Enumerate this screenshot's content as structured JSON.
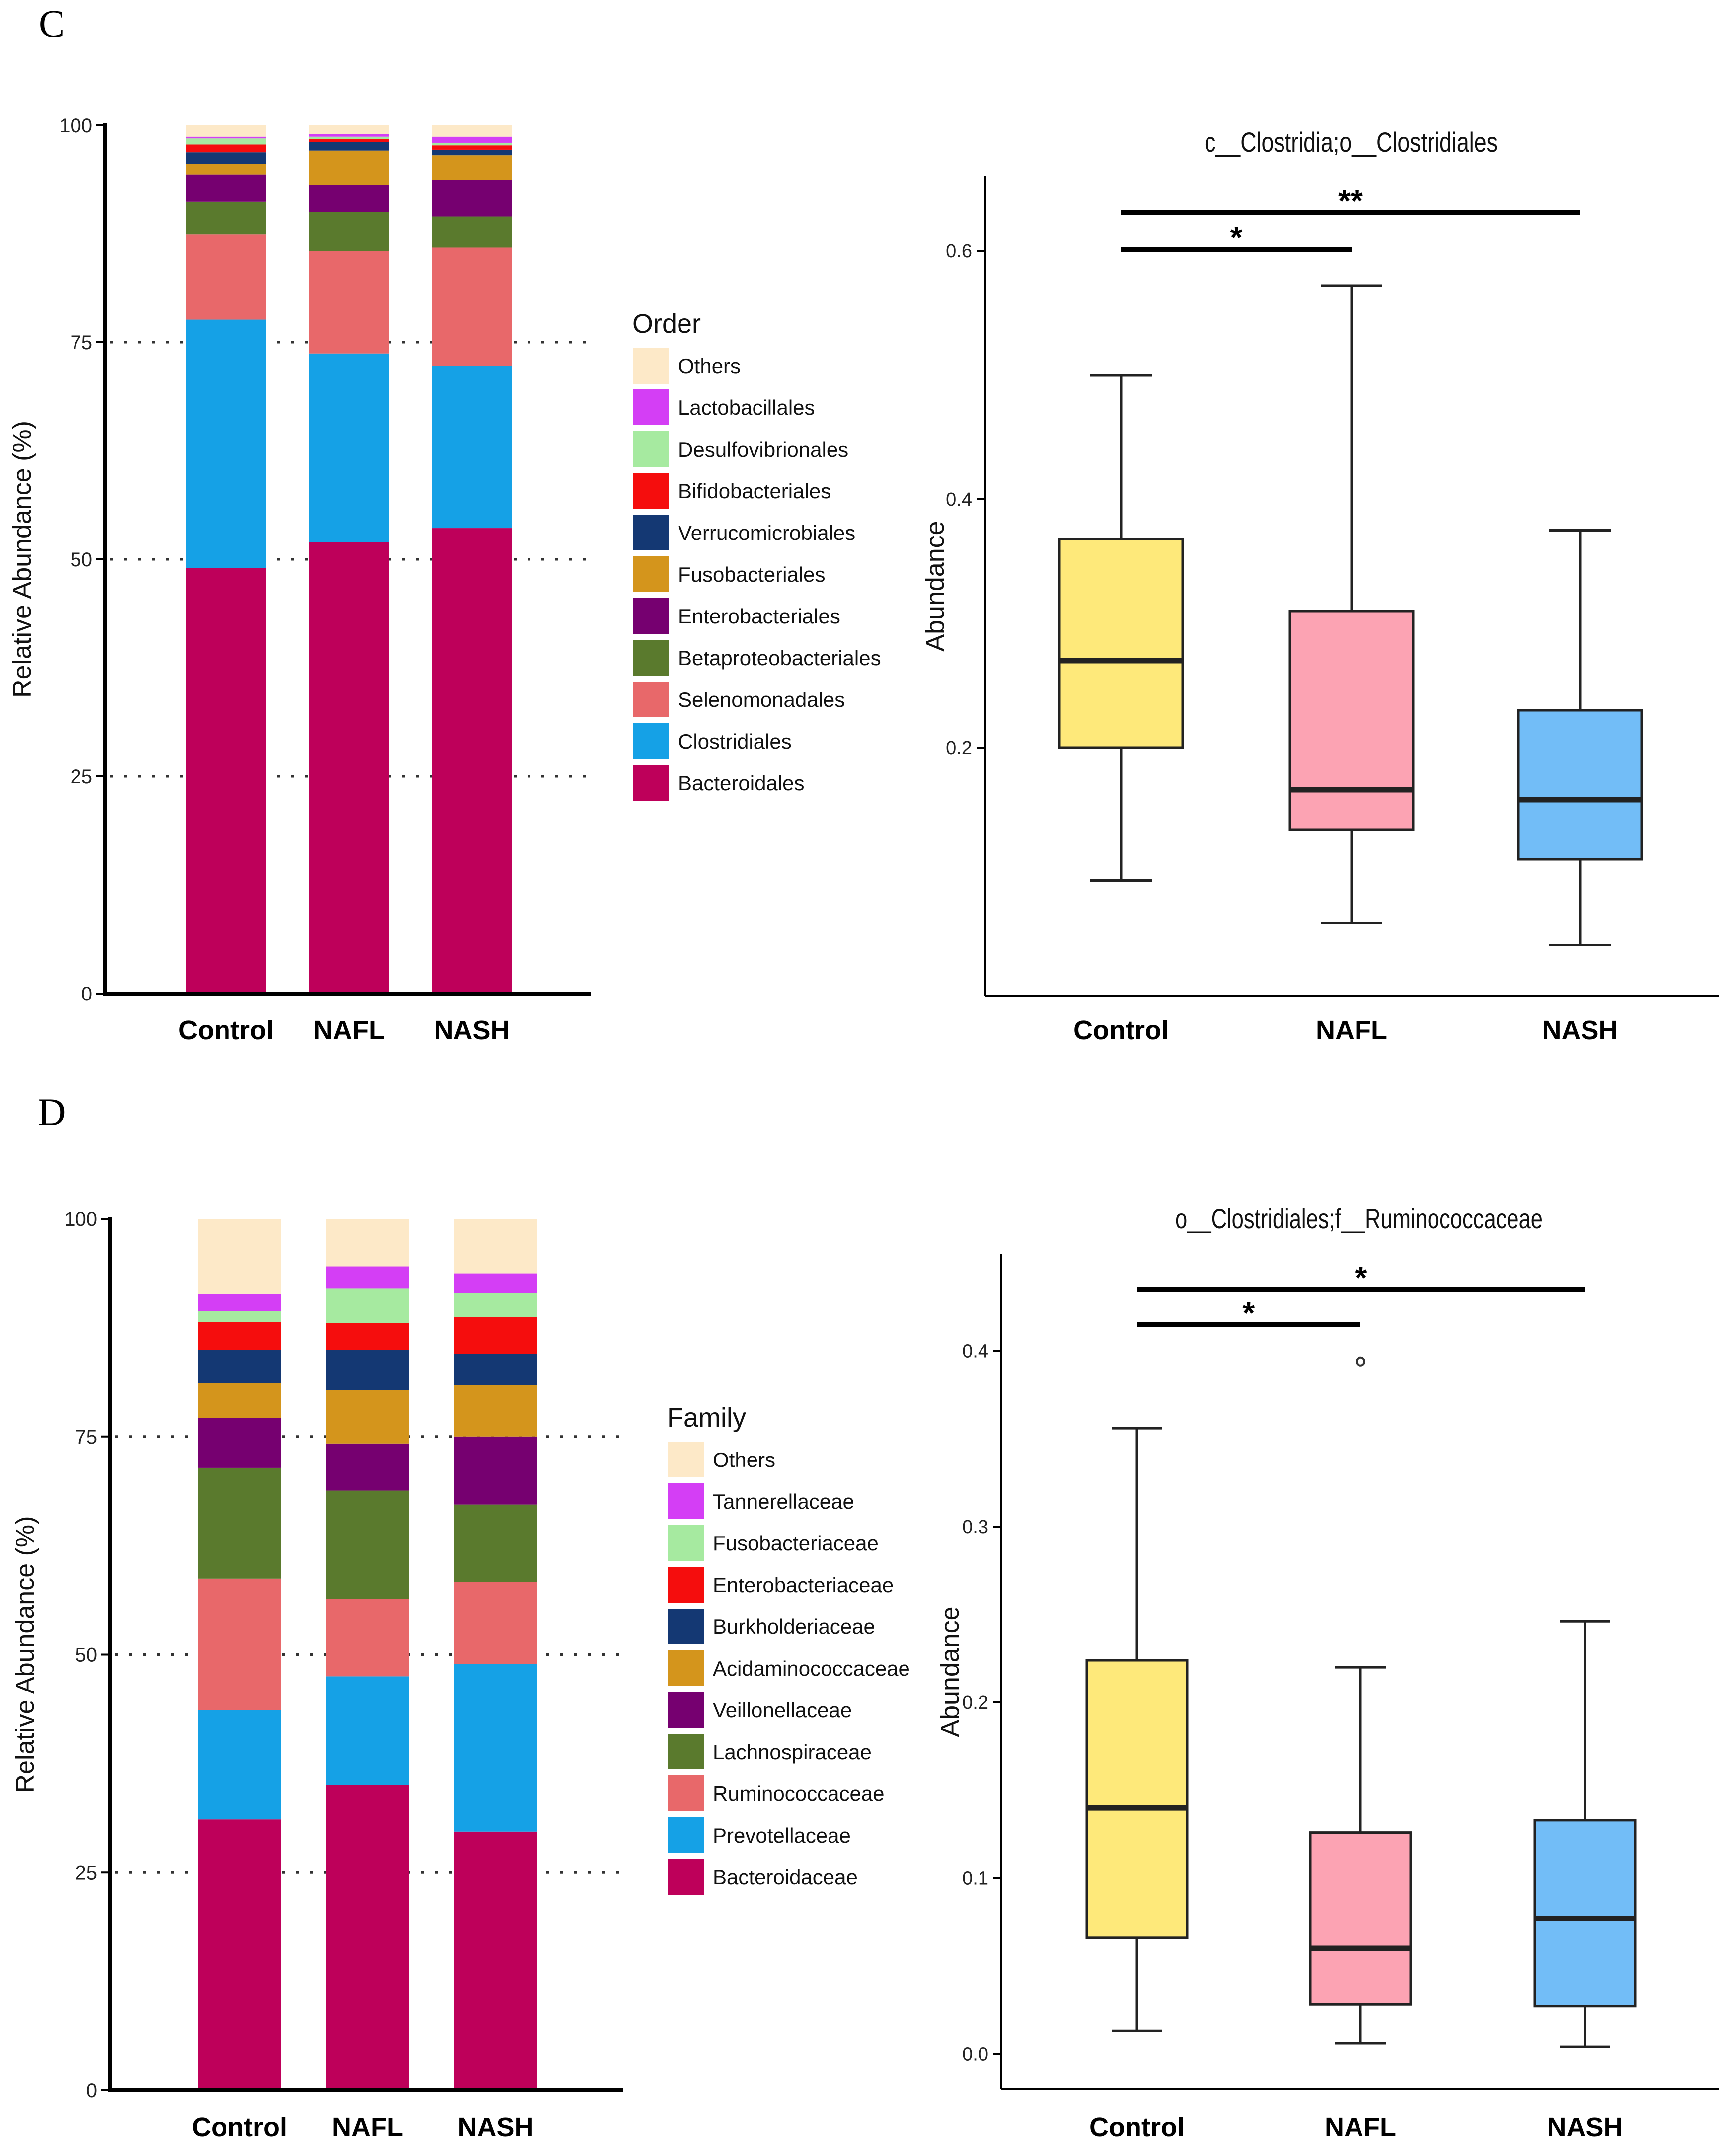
{
  "panels": [
    {
      "letter": "C"
    },
    {
      "letter": "D"
    }
  ],
  "chart_data": [
    {
      "type": "bar",
      "stacked": true,
      "panel": "C",
      "ylabel": "Relative Abundance (%)",
      "ylim": [
        0,
        100
      ],
      "yticks": [
        0,
        25,
        50,
        75,
        100
      ],
      "dotted_gridlines": [
        25,
        50,
        75
      ],
      "categories": [
        "Control",
        "NAFL",
        "NASH"
      ],
      "legend_title": "Order",
      "legend_position": "right",
      "series": [
        {
          "name": "Bacteroidales",
          "color": "#be005a",
          "values": [
            49,
            52,
            53.6
          ]
        },
        {
          "name": "Clostridiales",
          "color": "#15a1e6",
          "values": [
            28.6,
            21.7,
            18.7
          ]
        },
        {
          "name": "Selenomonadales",
          "color": "#e8686a",
          "values": [
            9.8,
            11.8,
            13.6
          ]
        },
        {
          "name": "Betaproteobacteriales",
          "color": "#5a7a2d",
          "values": [
            3.8,
            4.5,
            3.6
          ]
        },
        {
          "name": "Enterobacteriales",
          "color": "#760070",
          "values": [
            3.1,
            3.1,
            4.2
          ]
        },
        {
          "name": "Fusobacteriales",
          "color": "#d4951c",
          "values": [
            1.2,
            4.0,
            2.8
          ]
        },
        {
          "name": "Verrucomicrobiales",
          "color": "#143873",
          "values": [
            1.4,
            1.0,
            0.7
          ]
        },
        {
          "name": "Bifidobacteriales",
          "color": "#f50d0d",
          "values": [
            0.9,
            0.3,
            0.5
          ]
        },
        {
          "name": "Desulfovibrionales",
          "color": "#a6eaa0",
          "values": [
            0.7,
            0.3,
            0.3
          ]
        },
        {
          "name": "Lactobacillales",
          "color": "#d43ef5",
          "values": [
            0.2,
            0.3,
            0.7
          ]
        },
        {
          "name": "Others",
          "color": "#fde9c8",
          "values": [
            1.3,
            1.0,
            1.3
          ]
        }
      ]
    },
    {
      "type": "box",
      "panel": "C",
      "title": "c__Clostridia;o__Clostridiales",
      "ylabel": "Abundance",
      "ylim": [
        0.0,
        0.66
      ],
      "yticks": [
        0.2,
        0.4,
        0.6
      ],
      "ytick_labels": [
        "0.2",
        "0.4",
        "0.6"
      ],
      "categories": [
        "Control",
        "NAFL",
        "NASH"
      ],
      "boxes": [
        {
          "name": "Control",
          "color": "#fee97a",
          "min": 0.093,
          "q1": 0.2,
          "median": 0.27,
          "q3": 0.368,
          "max": 0.5,
          "outliers": []
        },
        {
          "name": "NAFL",
          "color": "#fca3b3",
          "min": 0.059,
          "q1": 0.134,
          "median": 0.166,
          "q3": 0.31,
          "max": 0.572,
          "outliers": []
        },
        {
          "name": "NASH",
          "color": "#72bdf7",
          "min": 0.041,
          "q1": 0.11,
          "median": 0.158,
          "q3": 0.23,
          "max": 0.375,
          "outliers": []
        }
      ],
      "significance": [
        {
          "from": "Control",
          "to": "NAFL",
          "label": "*"
        },
        {
          "from": "Control",
          "to": "NASH",
          "label": "**"
        }
      ]
    },
    {
      "type": "bar",
      "stacked": true,
      "panel": "D",
      "ylabel": "Relative Abundance (%)",
      "ylim": [
        0,
        100
      ],
      "yticks": [
        0,
        25,
        50,
        75,
        100
      ],
      "dotted_gridlines": [
        25,
        50,
        75
      ],
      "categories": [
        "Control",
        "NAFL",
        "NASH"
      ],
      "legend_title": "Family",
      "legend_position": "right",
      "series": [
        {
          "name": "Bacteroidaceae",
          "color": "#be005a",
          "values": [
            31.1,
            35,
            29.7
          ]
        },
        {
          "name": "Prevotellaceae",
          "color": "#15a1e6",
          "values": [
            12.5,
            12.5,
            19.2
          ]
        },
        {
          "name": "Ruminococcaceae",
          "color": "#e8686a",
          "values": [
            15.1,
            8.9,
            9.4
          ]
        },
        {
          "name": "Lachnospiraceae",
          "color": "#5a7a2d",
          "values": [
            12.7,
            12.4,
            8.9
          ]
        },
        {
          "name": "Veillonellaceae",
          "color": "#760070",
          "values": [
            5.7,
            5.4,
            7.8
          ]
        },
        {
          "name": "Acidaminococcaceae",
          "color": "#d4951c",
          "values": [
            4.0,
            6.1,
            5.9
          ]
        },
        {
          "name": "Burkholderiaceae",
          "color": "#143873",
          "values": [
            3.8,
            4.6,
            3.6
          ]
        },
        {
          "name": "Enterobacteriaceae",
          "color": "#f50d0d",
          "values": [
            3.2,
            3.1,
            4.2
          ]
        },
        {
          "name": "Fusobacteriaceae",
          "color": "#a6eaa0",
          "values": [
            1.3,
            4.0,
            2.8
          ]
        },
        {
          "name": "Tannerellaceae",
          "color": "#d43ef5",
          "values": [
            2.0,
            2.5,
            2.2
          ]
        },
        {
          "name": "Others",
          "color": "#fde9c8",
          "values": [
            8.6,
            5.5,
            6.3
          ]
        }
      ]
    },
    {
      "type": "box",
      "panel": "D",
      "title": "o__Clostridiales;f__Ruminococcaceae",
      "ylabel": "Abundance",
      "ylim": [
        -0.02,
        0.455
      ],
      "yticks": [
        0.0,
        0.1,
        0.2,
        0.3,
        0.4
      ],
      "ytick_labels": [
        "0.0",
        "0.1",
        "0.2",
        "0.3",
        "0.4"
      ],
      "categories": [
        "Control",
        "NAFL",
        "NASH"
      ],
      "boxes": [
        {
          "name": "Control",
          "color": "#fee97a",
          "min": 0.013,
          "q1": 0.066,
          "median": 0.14,
          "q3": 0.224,
          "max": 0.356,
          "outliers": []
        },
        {
          "name": "NAFL",
          "color": "#fca3b3",
          "min": 0.006,
          "q1": 0.028,
          "median": 0.06,
          "q3": 0.126,
          "max": 0.22,
          "outliers": [
            0.394
          ]
        },
        {
          "name": "NASH",
          "color": "#72bdf7",
          "min": 0.004,
          "q1": 0.027,
          "median": 0.077,
          "q3": 0.133,
          "max": 0.246,
          "outliers": []
        }
      ],
      "significance": [
        {
          "from": "Control",
          "to": "NAFL",
          "label": "*"
        },
        {
          "from": "Control",
          "to": "NASH",
          "label": "*"
        }
      ]
    }
  ]
}
